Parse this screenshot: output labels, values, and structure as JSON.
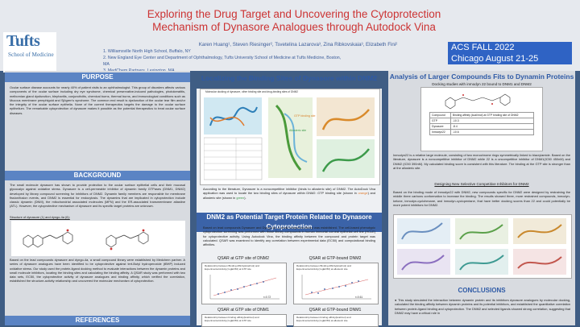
{
  "header": {
    "title": "Exploring the Drug Target and Uncovering the Cytoprotection Mechanism of Dynasore Analogues through Autodock Vina",
    "authors": "Karen Huang¹, Steven Riesinger², Tsvetelina Lazarova³, Zina Ribkovskaia³, Elizabeth Fini²",
    "affiliations": [
      "1. Williamsville North High School, Buffalo, NY",
      "2. New England Eye Center and Department of Ophthalmology, Tufts University School of Medicine at Tufts Medicine, Boston, MA",
      "3. MedChem Partners, Lexington, MA"
    ],
    "logo_name": "Tufts",
    "logo_sub": "School of Medicine",
    "conference_line1": "ACS FALL 2022",
    "conference_line2": "Chicago August 21-25"
  },
  "purpose": {
    "heading": "PURPOSE",
    "text": "Ocular surface disease accounts for nearly 40% of patient visits to an ophthalmologist. This group of disorders affects various components of the ocular surface including dry eye syndrome, chemical preservative-induced pathologies, photokeratitis, meibomian gland dysfunction, blepharitis, conjunctivitis, chemical burns, thermal burns, and immunological conditions such as Mucous membrane pemphigoid and Sjögren's syndrome. The common end result is dysfunction of the ocular tear film and/or the integrity of the ocular surface epithelia. None of the current therapeutics targets the damage to the ocular surface epithelium. The remarkable cytoprotection of dynasore makes it possible as the potential therapeutics to treat ocular surface diseases."
  },
  "background": {
    "heading": "BACKGROUND",
    "text": "The small molecule dynasore has shown to provide protection to the ocular surface epithelial cells and their mucosal glycocalyx against oxidative stress. Dynasore is a cell-permeable inhibitor of dynamin family GTPases (DNM1, DNM2) developed by library compound screening for inhibitors of DNM2. Dynamin family members are responsible for membrane fission/fusion events, and DNM2 is essential for endocytosis. The dynamins that are implicated in cytoprotection include classic dynamin (DNM), the mitochondrial associated molecules (MFN) and the ER-associated transmembrane atlastine (ATL). However, the cytoprotective mechanism of dynasore and its specific target proteins are unknown.",
    "structure_caption": "Structure of dynasore (1) and dyngo-4a (6):",
    "text2": "Based on the lead compounds dynasore and dyngo-4a, a small compound library were established by Medchem partner. A series of dynasore analogues have been identified to be cytoprotective against tert-Butyl hydroperoxide (tBHP) induced oxidative stress. Our study used the protein-ligand docking method to evaluate interactions between the dynamin proteins and small molecule inhibitors, locating the binding sites and calculating the binding affinity. A QSAR study was performed with two data sets, EC50, the cytoprotective activity of dynasore analogues and binding affinity, which verified the correlation, established the structure-activity relationship and uncovered the molecular mechanism of cytoprotection."
  },
  "references": {
    "heading": "REFERENCES"
  },
  "binding": {
    "heading": "Localizing the Binding Sites of Dynasore within DNM2",
    "figure_caption": "Molecular docking of dynasore, other binding site and drug-binding sites of DNM2",
    "label_gtp": "GTP binding site",
    "label_allo": "Allosteric site",
    "text_a": "According to the literature, Dynasore is a noncompetitive inhibitor (binds to allosteric site) of DNM2. The AutoDock Vina application was used to locate the two binding sites of dynasore within DNM2: GTP binding site (shown in ",
    "text_orange": "orange",
    "text_b": ") and allosteric site (shown in ",
    "text_green": "green",
    "text_c": ")."
  },
  "target": {
    "heading": "DNM2 as Potential Target Protein Related to Dynasore Cytoprotection",
    "text": "Based on lead compounds Dynasore and Dyngo-4a, a small compound library was established. The cell-based phenotypic cytoprotection screening was performed with those library compounds in human immortal corneal epithelial cell line (HCLE) for cytoprotective activity. Using Autodock Vina, the binding affinity between the compound and protein target was calculated. QSAR was examined to identify any correlation between experimental data (EC50) and computational binding affinities.",
    "plots": [
      {
        "title": "QSAR at GTP site of DNM2",
        "subtitle": "Relationship between Binding Affinity(kcal/mol) and Experimental Activity( logEC50) at GTP site",
        "r2": "r=0.72"
      },
      {
        "title": "QSAR at GTP-bound DNM2",
        "subtitle": "Relationship between Binding Affinity(kcal/mol) and Experimental Activity( logEC50) at allosteric site",
        "r2": "r=0.61"
      },
      {
        "title": "QSAR at GTP site of DNM1",
        "subtitle": "Relationship between binding affinity(kcal/mol) and Experimental Activity( logEC50) at GTP site",
        "r2": ""
      },
      {
        "title": "QSAR at GTP-bound DNM1",
        "subtitle": "Relationship between binding affinity(kcal/mol) and Experimental Activity( logEC50) at allosteric site",
        "r2": ""
      }
    ]
  },
  "larger": {
    "heading": "Analysis of Larger Compounds Fits to Dynamin Proteins",
    "docking_caption": "Docking studies with inmodyn 22 bound to DNM1 and DNM2",
    "table": {
      "headers": [
        "Compound",
        "Binding affinity (kcal/mol) at GTP binding site of DNM2"
      ],
      "rows": [
        [
          "GTP",
          "-10.3"
        ],
        [
          "Dynasore",
          "-8.4"
        ],
        [
          "Inmodyn22",
          "-10.6"
        ]
      ]
    },
    "text": "Inmodyn22 is a relative large molecule, consisting of two monochrome rings symmetrically linked to biacrylamide. Based on the literature, dynasore is a noncompetitive inhibitor of DNM2 while 22 is a uncompetitive inhibitor of DNM1(IC50 450nM) and DNM2 (IC50 390nM). My calculated binding score is consistent with this literature. The binding at the GTP site is stronger than at the allosteric site.",
    "design_title": "Designing New Selective Competitive Inhibitors for DNM2",
    "design_text": "Based on the binding mode of inmodyn22 with DNM2, new compounds specific for DNM2 were designed by restraining the middle three carbons conformation to increase the binding. The results showed three, more restrained compounds, inmodyn-ketone, inmodyn-cyclohexane, and inmodyn-cyclopentane, that have better docking scores than 22 and could potentially be more potent inhibitors for DNM2."
  },
  "conclusions": {
    "heading": "CONCLUSIONS",
    "text": "This study simulated the interaction between dynamin protein and its inhibitors dynasore analogues by molecular docking, calculated the binding affinity between dynamin proteins and its potential inhibitors, and established the quantitative correlation between protein-ligand binding and cytoprotection. The DNM2 and selected ligands showed strong correlation, suggesting that DNM2 may have a critical role in"
  },
  "colors": {
    "background": "#3f5d84",
    "title": "#cc3333",
    "accent": "#5b84c4",
    "conference": "#2f63c4"
  }
}
